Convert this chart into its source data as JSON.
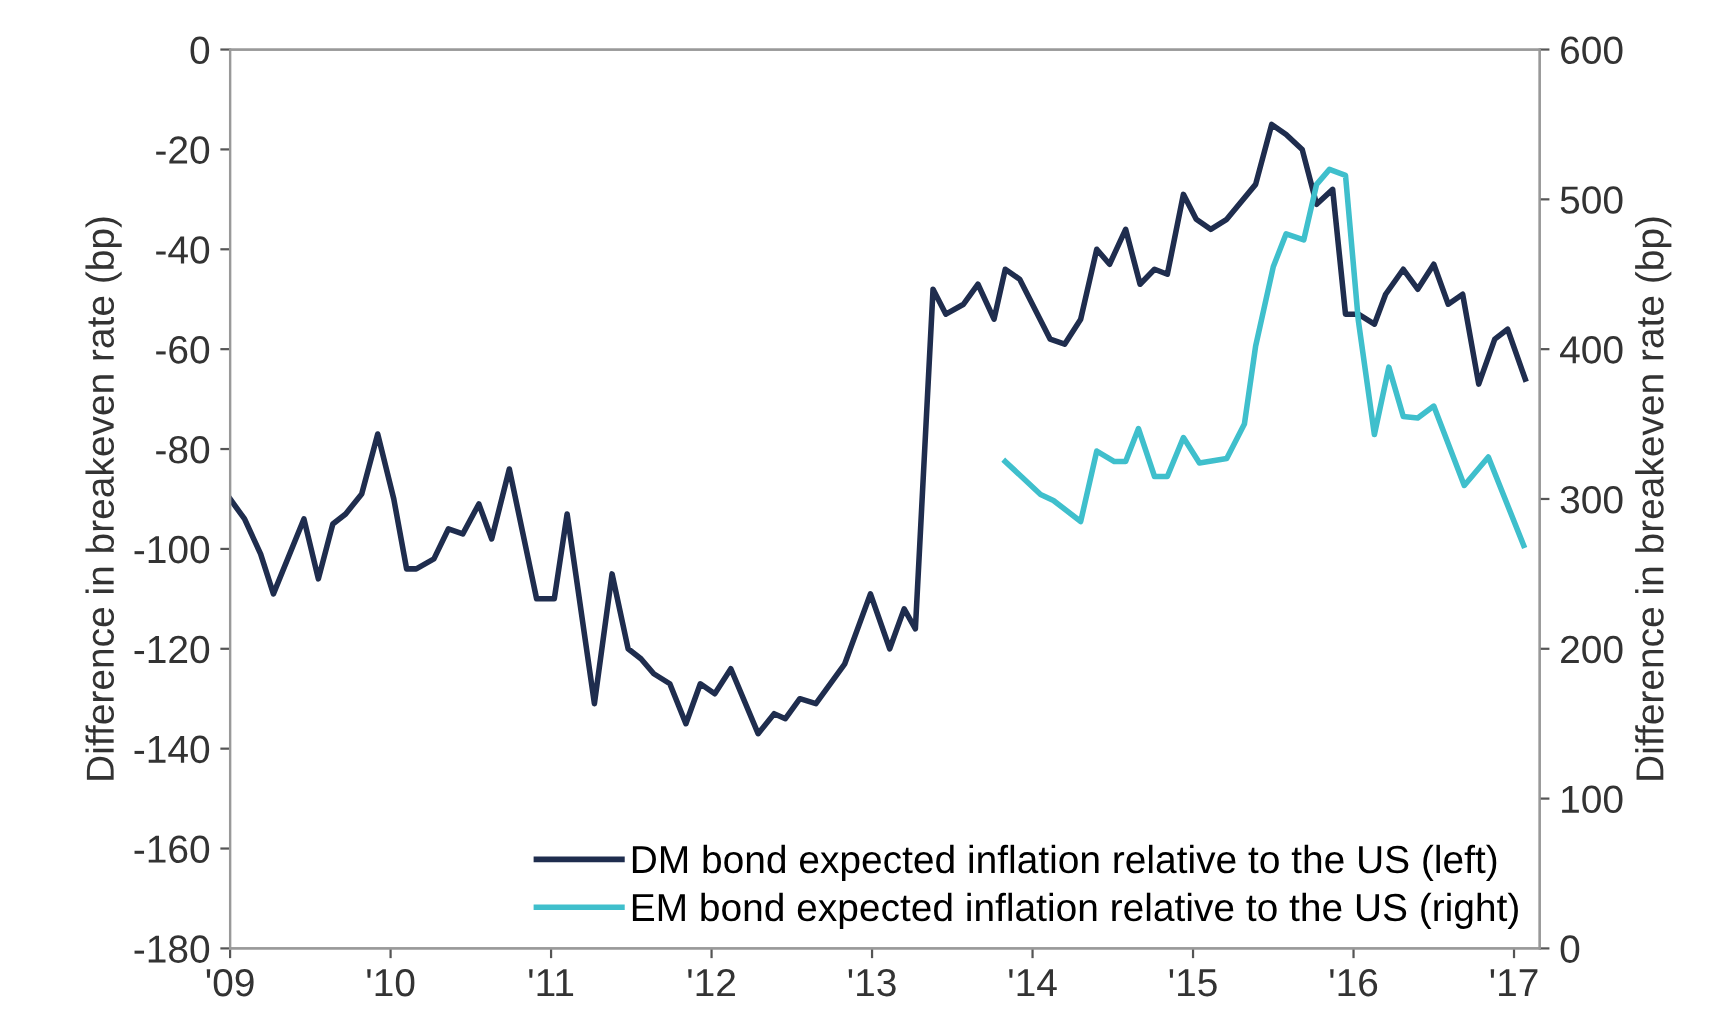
{
  "chart_data": {
    "type": "line",
    "ylabel": "Difference in breakeven rate (bp)",
    "y2label": "Difference in breakeven rate (bp)",
    "xlim": [
      2009,
      2017.16
    ],
    "xticks": [
      {
        "value": 2009,
        "label": "'09"
      },
      {
        "value": 2010,
        "label": "'10"
      },
      {
        "value": 2011,
        "label": "'11"
      },
      {
        "value": 2012,
        "label": "'12"
      },
      {
        "value": 2013,
        "label": "'13"
      },
      {
        "value": 2014,
        "label": "'14"
      },
      {
        "value": 2015,
        "label": "'15"
      },
      {
        "value": 2016,
        "label": "'16"
      },
      {
        "value": 2017,
        "label": "'17"
      }
    ],
    "ylim": [
      -180,
      0
    ],
    "yticks": [
      -180,
      -160,
      -140,
      -120,
      -100,
      -80,
      -60,
      -40,
      -20,
      0
    ],
    "y2lim": [
      0,
      600
    ],
    "y2ticks": [
      0,
      100,
      200,
      300,
      400,
      500,
      600
    ],
    "grid": false,
    "legend": "bottom right",
    "marker": "none",
    "line_style": "solid",
    "series": [
      {
        "name": "DM bond expected inflation relative to the US (left)",
        "color": "#1f2d4e",
        "x": [
          2009.0,
          2009.09,
          2009.19,
          2009.27,
          2009.46,
          2009.55,
          2009.64,
          2009.72,
          2009.82,
          2009.92,
          2010.02,
          2010.1,
          2010.16,
          2010.27,
          2010.36,
          2010.45,
          2010.55,
          2010.63,
          2010.74,
          2010.91,
          2011.02,
          2011.1,
          2011.27,
          2011.38,
          2011.48,
          2011.56,
          2011.64,
          2011.74,
          2011.84,
          2011.93,
          2012.02,
          2012.12,
          2012.29,
          2012.39,
          2012.46,
          2012.55,
          2012.65,
          2012.83,
          2012.99,
          2013.11,
          2013.2,
          2013.27,
          2013.38,
          2013.46,
          2013.57,
          2013.66,
          2013.76,
          2013.83,
          2013.92,
          2014.11,
          2014.2,
          2014.3,
          2014.4,
          2014.48,
          2014.58,
          2014.67,
          2014.76,
          2014.84,
          2014.94,
          2015.02,
          2015.11,
          2015.21,
          2015.39,
          2015.49,
          2015.58,
          2015.68,
          2015.77,
          2015.87,
          2015.95,
          2016.03,
          2016.13,
          2016.2,
          2016.31,
          2016.4,
          2016.5,
          2016.59,
          2016.68,
          2016.78,
          2016.88,
          2016.96,
          2017.07
        ],
        "values": [
          -90,
          -94,
          -101,
          -109,
          -94,
          -106,
          -95,
          -93,
          -89,
          -77,
          -90,
          -104,
          -104,
          -102,
          -96,
          -97,
          -91,
          -98,
          -84,
          -110,
          -110,
          -93,
          -131,
          -105,
          -120,
          -122,
          -125,
          -127,
          -135,
          -127,
          -129,
          -124,
          -137,
          -133,
          -134,
          -130,
          -131,
          -123,
          -109,
          -120,
          -112,
          -116,
          -48,
          -53,
          -51,
          -47,
          -54,
          -44,
          -46,
          -58,
          -59,
          -54,
          -40,
          -43,
          -36,
          -47,
          -44,
          -45,
          -29,
          -34,
          -36,
          -34,
          -27,
          -15,
          -17,
          -20,
          -31,
          -28,
          -53,
          -53,
          -55,
          -49,
          -44,
          -48,
          -43,
          -51,
          -49,
          -67,
          -58,
          -56,
          -66
        ]
      },
      {
        "name": "EM bond expected inflation relative to the US (right)",
        "color": "#3fbfcc",
        "axis": "y2",
        "x": [
          2013.83,
          2014.05,
          2014.13,
          2014.3,
          2014.4,
          2014.51,
          2014.58,
          2014.66,
          2014.76,
          2014.84,
          2014.94,
          2015.04,
          2015.21,
          2015.32,
          2015.39,
          2015.5,
          2015.58,
          2015.69,
          2015.77,
          2015.85,
          2015.95,
          2016.03,
          2016.13,
          2016.22,
          2016.31,
          2016.4,
          2016.5,
          2016.69,
          2016.84,
          2017.06
        ],
        "values": [
          325,
          303,
          299,
          285,
          332,
          325,
          325,
          347,
          315,
          315,
          341,
          324,
          327,
          350,
          402,
          455,
          477,
          473,
          510,
          520,
          516,
          419,
          343,
          388,
          355,
          354,
          362,
          309,
          328,
          269
        ]
      }
    ]
  }
}
